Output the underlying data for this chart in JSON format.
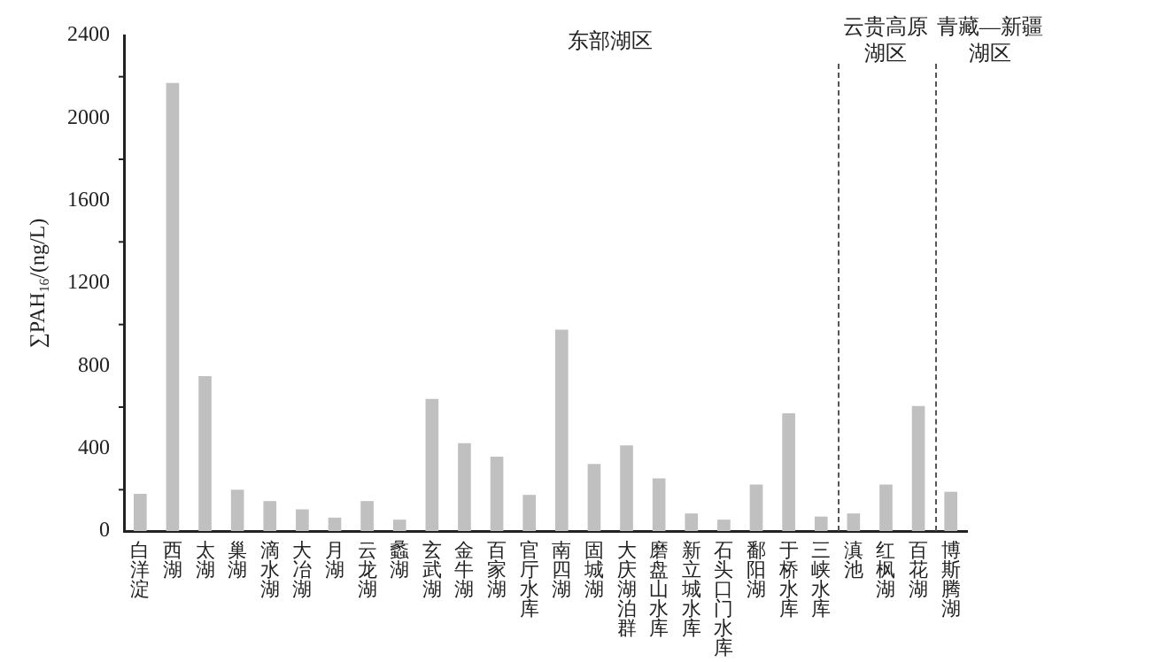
{
  "chart_data": {
    "type": "bar",
    "ylabel": "∑PAH$_{16}$/(ng/L)",
    "categories": [
      "白洋淀",
      "西湖",
      "太湖",
      "巢湖",
      "滴水湖",
      "大冶湖",
      "月湖",
      "云龙湖",
      "蠡湖",
      "玄武湖",
      "金牛湖",
      "百家湖",
      "官厅水库",
      "南四湖",
      "固城湖",
      "大庆湖泊群",
      "磨盘山水库",
      "新立城水库",
      "石头口门水库",
      "鄱阳湖",
      "于桥水库",
      "三峡水库",
      "滇池",
      "红枫湖",
      "百花湖",
      "博斯腾湖"
    ],
    "values": [
      180,
      2170,
      750,
      200,
      145,
      105,
      65,
      145,
      55,
      640,
      425,
      360,
      175,
      975,
      325,
      415,
      255,
      85,
      55,
      225,
      570,
      70,
      85,
      225,
      605,
      190
    ],
    "color": "#c0c0c0",
    "ylim": [
      0,
      2400
    ],
    "yticks": [
      0,
      400,
      800,
      1200,
      1600,
      2000,
      2400
    ],
    "grid": false,
    "legend": false,
    "annotations": [
      "东部湖区",
      "云贵高原湖区",
      "青藏—新疆湖区"
    ]
  }
}
